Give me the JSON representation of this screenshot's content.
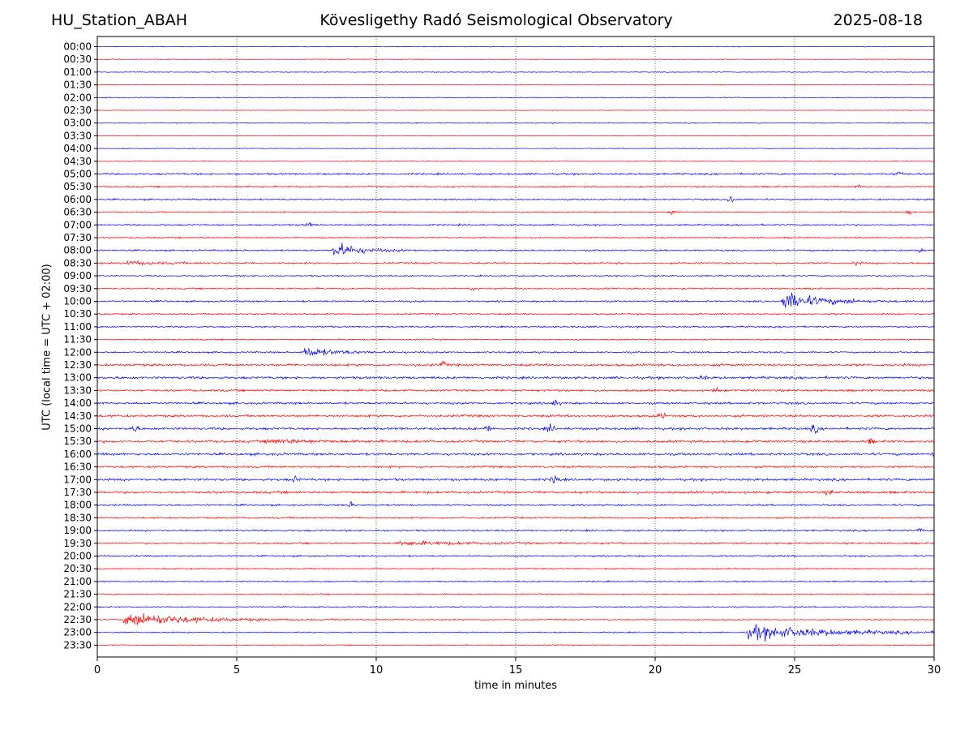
{
  "header": {
    "station": "HU_Station_ABAH",
    "observatory": "Kövesligethy Radó Seismological Observatory",
    "date": "2025-08-18"
  },
  "chart_data": {
    "type": "line",
    "title": "Kövesligethy Radó Seismological Observatory",
    "xlabel": "time in minutes",
    "ylabel": "UTC (local time = UTC + 02:00)",
    "xlim": [
      0,
      30
    ],
    "xticks": [
      0,
      5,
      10,
      15,
      20,
      25,
      30
    ],
    "grid": "vertical dotted at x ticks",
    "colors": {
      "even_rows": "#0000ff",
      "odd_rows": "#ff0000"
    },
    "row_labels": [
      "00:00",
      "00:30",
      "01:00",
      "01:30",
      "02:00",
      "02:30",
      "03:00",
      "03:30",
      "04:00",
      "04:30",
      "05:00",
      "05:30",
      "06:00",
      "06:30",
      "07:00",
      "07:30",
      "08:00",
      "08:30",
      "09:00",
      "09:30",
      "10:00",
      "10:30",
      "11:00",
      "11:30",
      "12:00",
      "12:30",
      "13:00",
      "13:30",
      "14:00",
      "14:30",
      "15:00",
      "15:30",
      "16:00",
      "16:30",
      "17:00",
      "17:30",
      "18:00",
      "18:30",
      "19:00",
      "19:30",
      "20:00",
      "20:30",
      "21:00",
      "21:30",
      "22:00",
      "22:30",
      "23:00",
      "23:30"
    ],
    "noise_level": [
      0.6,
      0.6,
      0.6,
      0.5,
      0.6,
      0.5,
      0.6,
      0.5,
      0.6,
      0.6,
      1.4,
      1.2,
      1.2,
      1.0,
      1.2,
      1.0,
      1.2,
      1.3,
      1.0,
      1.2,
      1.3,
      1.2,
      1.2,
      1.0,
      1.2,
      1.8,
      1.8,
      1.6,
      1.6,
      1.8,
      1.8,
      1.8,
      1.8,
      1.6,
      1.8,
      1.8,
      1.3,
      1.3,
      1.3,
      1.3,
      1.2,
      1.0,
      1.0,
      1.0,
      0.9,
      0.9,
      0.9,
      0.8
    ],
    "events": [
      {
        "row": "08:00",
        "start_min": 8.4,
        "amplitude": 14,
        "duration_min": 1.8
      },
      {
        "row": "10:00",
        "start_min": 24.5,
        "amplitude": 16,
        "duration_min": 2.5
      },
      {
        "row": "12:00",
        "start_min": 7.3,
        "amplitude": 9,
        "duration_min": 2.2
      },
      {
        "row": "19:30",
        "start_min": 10.7,
        "amplitude": 3,
        "duration_min": 5.5
      },
      {
        "row": "22:30",
        "start_min": 0.9,
        "amplitude": 13,
        "duration_min": 4.5
      },
      {
        "row": "23:00",
        "start_min": 23.2,
        "amplitude": 12,
        "duration_min": 6.0
      },
      {
        "row": "08:30",
        "start_min": 1.0,
        "amplitude": 3,
        "duration_min": 2.5
      },
      {
        "row": "15:30",
        "start_min": 6.0,
        "amplitude": 4,
        "duration_min": 3.0
      }
    ],
    "spikes": [
      {
        "row": "05:00",
        "x_min": 28.7,
        "amplitude": 6
      },
      {
        "row": "06:00",
        "x_min": 22.7,
        "amplitude": 8
      },
      {
        "row": "06:30",
        "x_min": 29.1,
        "amplitude": 5
      },
      {
        "row": "07:00",
        "x_min": 7.6,
        "amplitude": 5
      },
      {
        "row": "09:30",
        "x_min": 13.5,
        "amplitude": 3
      },
      {
        "row": "12:30",
        "x_min": 12.4,
        "amplitude": 5
      },
      {
        "row": "14:00",
        "x_min": 16.4,
        "amplitude": 5
      },
      {
        "row": "14:30",
        "x_min": 20.2,
        "amplitude": 7
      },
      {
        "row": "15:00",
        "x_min": 1.3,
        "amplitude": 9
      },
      {
        "row": "15:00",
        "x_min": 14.0,
        "amplitude": 6
      },
      {
        "row": "15:00",
        "x_min": 16.2,
        "amplitude": 8
      },
      {
        "row": "15:00",
        "x_min": 25.7,
        "amplitude": 9
      },
      {
        "row": "15:30",
        "x_min": 27.7,
        "amplitude": 5
      },
      {
        "row": "17:00",
        "x_min": 7.1,
        "amplitude": 6
      },
      {
        "row": "17:00",
        "x_min": 16.4,
        "amplitude": 10
      },
      {
        "row": "17:30",
        "x_min": 26.2,
        "amplitude": 6
      },
      {
        "row": "18:00",
        "x_min": 9.1,
        "amplitude": 5
      },
      {
        "row": "13:00",
        "x_min": 21.7,
        "amplitude": 4
      },
      {
        "row": "13:30",
        "x_min": 22.2,
        "amplitude": 5
      },
      {
        "row": "16:00",
        "x_min": 30.0,
        "amplitude": 4
      },
      {
        "row": "08:00",
        "x_min": 29.5,
        "amplitude": 4
      },
      {
        "row": "05:30",
        "x_min": 27.3,
        "amplitude": 4
      },
      {
        "row": "06:30",
        "x_min": 20.6,
        "amplitude": 4
      },
      {
        "row": "08:30",
        "x_min": 27.2,
        "amplitude": 4
      },
      {
        "row": "10:00",
        "x_min": 27.0,
        "amplitude": 3
      },
      {
        "row": "19:00",
        "x_min": 29.5,
        "amplitude": 4
      }
    ]
  }
}
